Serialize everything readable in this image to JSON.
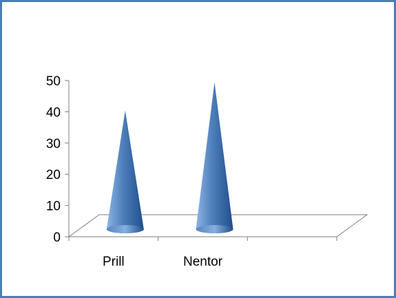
{
  "chart_data": {
    "type": "bar",
    "style": "3d-cone",
    "categories": [
      "Prill",
      "Nentor",
      ""
    ],
    "values": [
      38,
      47,
      null
    ],
    "ylim": [
      0,
      50
    ],
    "yticks": [
      0,
      10,
      20,
      30,
      40,
      50
    ],
    "grid": false,
    "legend": "none",
    "colors": {
      "cone_light": "#8fb4e3",
      "cone_mid": "#4f81bd",
      "cone_dark": "#1f4e8c",
      "axis": "#7f7f7f",
      "frame": "#4a7ebb"
    }
  }
}
